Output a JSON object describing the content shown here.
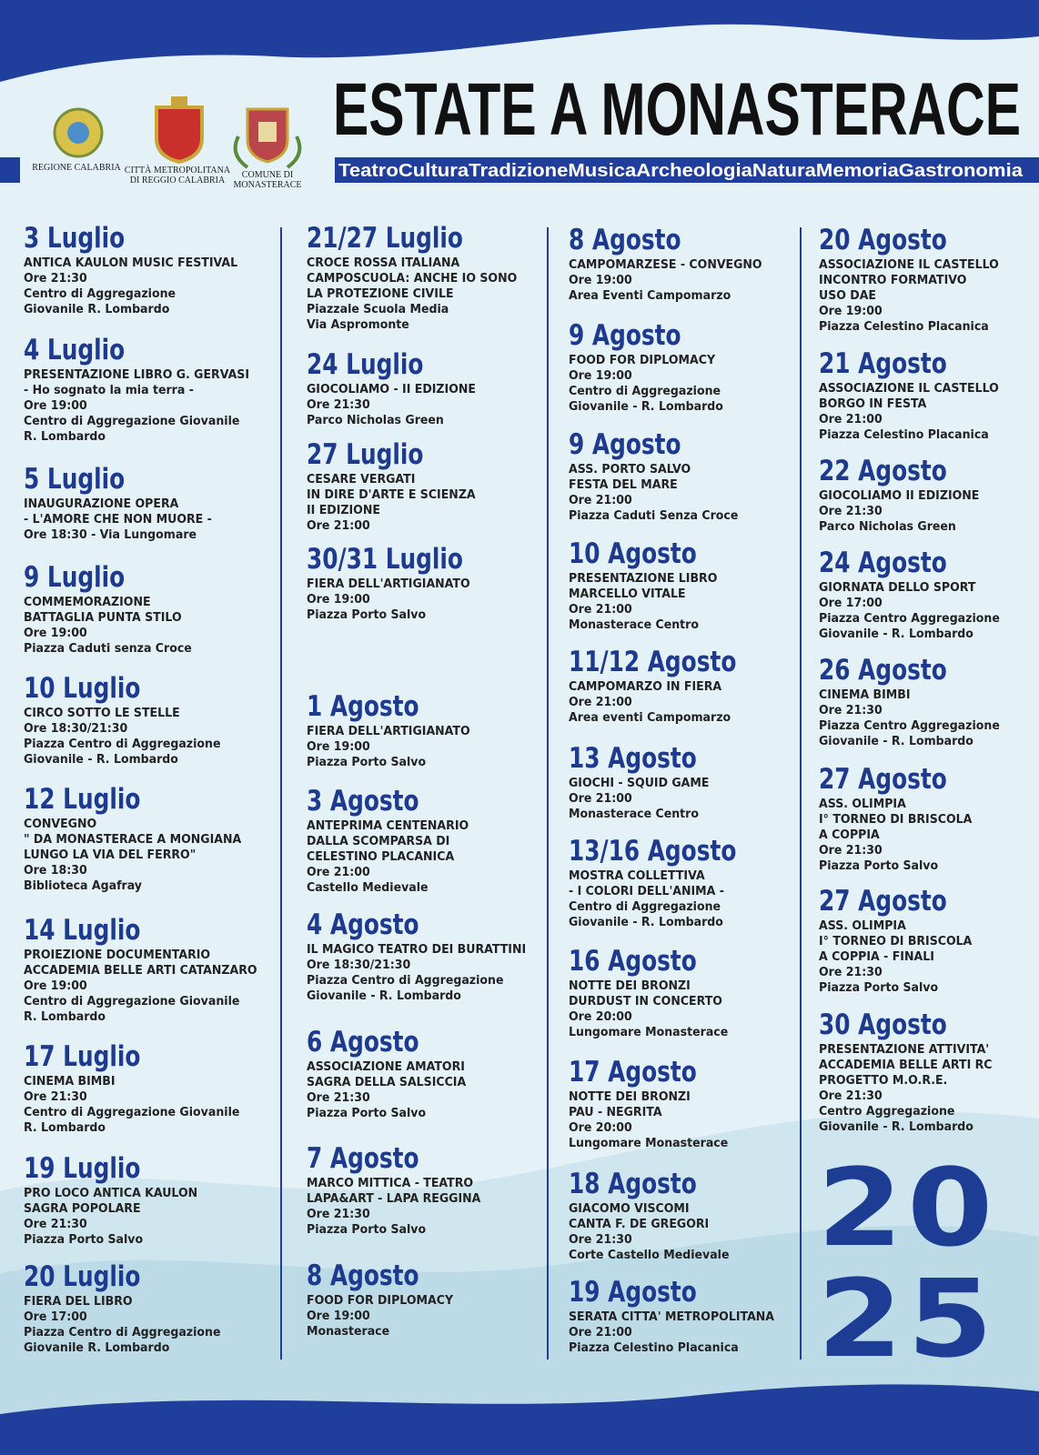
{
  "logos": {
    "regione": [
      "REGIONE CALABRIA"
    ],
    "citta": [
      "CITTÀ METROPOLITANA",
      "DI REGGIO CALABRIA"
    ],
    "comune": [
      "COMUNE DI",
      "MONASTERACE"
    ]
  },
  "title": "ESTATE A MONASTERACE",
  "subtitle": [
    "Teatro",
    "Cultura",
    "Tradizione",
    "Musica",
    "Archeologia",
    "Natura",
    "Memoria",
    "Gastronomia"
  ],
  "columns": [
    [
      {
        "date": "3 Luglio",
        "lines": [
          "ANTICA KAULON MUSIC FESTIVAL",
          "Ore 21:30",
          "Centro di Aggregazione",
          "Giovanile R. Lombardo"
        ]
      },
      {
        "date": "4 Luglio",
        "lines": [
          "PRESENTAZIONE LIBRO G. GERVASI",
          "- Ho sognato la mia terra -",
          "Ore 19:00",
          "Centro di Aggregazione Giovanile",
          "R. Lombardo"
        ]
      },
      {
        "date": "5 Luglio",
        "lines": [
          "INAUGURAZIONE OPERA",
          "- L'AMORE CHE NON MUORE -",
          "Ore 18:30 - Via Lungomare"
        ]
      },
      {
        "date": "9 Luglio",
        "lines": [
          "COMMEMORAZIONE",
          "BATTAGLIA PUNTA STILO",
          "Ore 19:00",
          "Piazza Caduti senza Croce"
        ]
      },
      {
        "date": "10 Luglio",
        "lines": [
          "CIRCO SOTTO LE STELLE",
          "Ore 18:30/21:30",
          "Piazza Centro di Aggregazione",
          "Giovanile - R. Lombardo"
        ]
      },
      {
        "date": "12 Luglio",
        "lines": [
          "CONVEGNO",
          "\" DA MONASTERACE A MONGIANA",
          "LUNGO LA VIA DEL FERRO\"",
          "Ore 18:30",
          "Biblioteca Agafray"
        ]
      },
      {
        "date": "14 Luglio",
        "lines": [
          "PROIEZIONE DOCUMENTARIO",
          "ACCADEMIA BELLE ARTI CATANZARO",
          "Ore 19:00",
          "Centro di Aggregazione Giovanile",
          "R. Lombardo"
        ]
      },
      {
        "date": "17 Luglio",
        "lines": [
          "CINEMA BIMBI",
          "Ore 21:30",
          "Centro di Aggregazione Giovanile",
          "R. Lombardo"
        ]
      },
      {
        "date": "19 Luglio",
        "lines": [
          "PRO LOCO ANTICA KAULON",
          "SAGRA POPOLARE",
          "Ore 21:30",
          "Piazza Porto Salvo"
        ]
      },
      {
        "date": "20 Luglio",
        "lines": [
          "FIERA DEL LIBRO",
          "Ore 17:00",
          "Piazza Centro di Aggregazione",
          "Giovanile R. Lombardo"
        ]
      }
    ],
    [
      {
        "date": "21/27 Luglio",
        "lines": [
          "CROCE ROSSA ITALIANA",
          "CAMPOSCUOLA: ANCHE IO SONO",
          "LA PROTEZIONE CIVILE",
          "Piazzale Scuola Media",
          "Via Aspromonte"
        ]
      },
      {
        "date": "24 Luglio",
        "lines": [
          "GIOCOLIAMO - II EDIZIONE",
          "Ore 21:30",
          "Parco Nicholas Green"
        ]
      },
      {
        "date": "27 Luglio",
        "lines": [
          "CESARE VERGATI",
          "IN DIRE D'ARTE E SCIENZA",
          "II EDIZIONE",
          "Ore 21:00"
        ]
      },
      {
        "date": "30/31 Luglio",
        "lines": [
          "FIERA DELL'ARTIGIANATO",
          "Ore 19:00",
          "Piazza Porto Salvo"
        ]
      },
      {
        "date": "1 Agosto",
        "lines": [
          "FIERA DELL'ARTIGIANATO",
          "Ore 19:00",
          "Piazza Porto Salvo"
        ]
      },
      {
        "date": "3 Agosto",
        "lines": [
          "ANTEPRIMA CENTENARIO",
          "DALLA SCOMPARSA DI",
          "CELESTINO PLACANICA",
          "Ore 21:00",
          "Castello Medievale"
        ]
      },
      {
        "date": "4 Agosto",
        "lines": [
          "IL MAGICO TEATRO DEI BURATTINI",
          "Ore 18:30/21:30",
          "Piazza Centro di Aggregazione",
          "Giovanile - R. Lombardo"
        ]
      },
      {
        "date": "6 Agosto",
        "lines": [
          "ASSOCIAZIONE AMATORI",
          "SAGRA DELLA SALSICCIA",
          "Ore 21:30",
          "Piazza Porto Salvo"
        ]
      },
      {
        "date": "7 Agosto",
        "lines": [
          "MARCO MITTICA - TEATRO",
          "LAPA&ART - LAPA REGGINA",
          "Ore 21:30",
          "Piazza Porto Salvo"
        ]
      },
      {
        "date": "8 Agosto",
        "lines": [
          "FOOD FOR DIPLOMACY",
          "Ore 19:00",
          "Monasterace"
        ]
      }
    ],
    [
      {
        "date": "8 Agosto",
        "lines": [
          "CAMPOMARZESE - CONVEGNO",
          "Ore 19:00",
          "Area Eventi Campomarzo"
        ]
      },
      {
        "date": "9 Agosto",
        "lines": [
          "FOOD FOR DIPLOMACY",
          "Ore 19:00",
          "Centro di Aggregazione",
          "Giovanile - R. Lombardo"
        ]
      },
      {
        "date": "9 Agosto",
        "lines": [
          "ASS. PORTO SALVO",
          "FESTA DEL MARE",
          "Ore 21:00",
          "Piazza Caduti Senza Croce"
        ]
      },
      {
        "date": "10 Agosto",
        "lines": [
          "PRESENTAZIONE LIBRO",
          "MARCELLO VITALE",
          "Ore 21:00",
          "Monasterace Centro"
        ]
      },
      {
        "date": "11/12 Agosto",
        "lines": [
          "CAMPOMARZO IN FIERA",
          "Ore 21:00",
          "Area eventi Campomarzo"
        ]
      },
      {
        "date": "13 Agosto",
        "lines": [
          "GIOCHI - SQUID GAME",
          "Ore 21:00",
          "Monasterace Centro"
        ]
      },
      {
        "date": "13/16 Agosto",
        "lines": [
          "MOSTRA COLLETTIVA",
          "- I COLORI DELL'ANIMA -",
          "Centro di Aggregazione",
          "Giovanile - R. Lombardo"
        ]
      },
      {
        "date": "16 Agosto",
        "lines": [
          "NOTTE DEI BRONZI",
          "DURDUST IN CONCERTO",
          "Ore 20:00",
          "Lungomare Monasterace"
        ]
      },
      {
        "date": "17 Agosto",
        "lines": [
          "NOTTE DEI BRONZI",
          "PAU - NEGRITA",
          "Ore 20:00",
          "Lungomare Monasterace"
        ]
      },
      {
        "date": "18 Agosto",
        "lines": [
          "GIACOMO VISCOMI",
          "CANTA F. DE GREGORI",
          "Ore 21:30",
          "Corte Castello Medievale"
        ]
      },
      {
        "date": "19 Agosto",
        "lines": [
          "SERATA CITTA' METROPOLITANA",
          "Ore 21:00",
          "Piazza Celestino Placanica"
        ]
      }
    ],
    [
      {
        "date": "20 Agosto",
        "lines": [
          "ASSOCIAZIONE IL CASTELLO",
          "INCONTRO FORMATIVO",
          "USO DAE",
          "Ore 19:00",
          "Piazza Celestino Placanica"
        ]
      },
      {
        "date": "21 Agosto",
        "lines": [
          "ASSOCIAZIONE IL CASTELLO",
          "BORGO IN FESTA",
          "Ore 21:00",
          "Piazza Celestino Placanica"
        ]
      },
      {
        "date": "22 Agosto",
        "lines": [
          "GIOCOLIAMO II EDIZIONE",
          "Ore 21:30",
          "Parco Nicholas Green"
        ]
      },
      {
        "date": "24 Agosto",
        "lines": [
          "GIORNATA DELLO SPORT",
          "Ore 17:00",
          "Piazza Centro Aggregazione",
          "Giovanile - R. Lombardo"
        ]
      },
      {
        "date": "26 Agosto",
        "lines": [
          "CINEMA BIMBI",
          "Ore 21:30",
          "Piazza Centro Aggregazione",
          "Giovanile - R. Lombardo"
        ]
      },
      {
        "date": "27 Agosto",
        "lines": [
          "ASS. OLIMPIA",
          "I° TORNEO DI BRISCOLA",
          "A COPPIA",
          "Ore 21:30",
          "Piazza Porto Salvo"
        ]
      },
      {
        "date": "27 Agosto",
        "lines": [
          "ASS. OLIMPIA",
          "I° TORNEO DI BRISCOLA",
          "A COPPIA - FINALI",
          "Ore 21:30",
          "Piazza Porto Salvo"
        ]
      },
      {
        "date": "30 Agosto",
        "lines": [
          "PRESENTAZIONE ATTIVITA'",
          "ACCADEMIA BELLE ARTI RC",
          "PROGETTO M.O.R.E.",
          "Ore 21:30",
          "Centro Aggregazione",
          "Giovanile - R. Lombardo"
        ]
      }
    ]
  ],
  "year": [
    "20",
    "25"
  ]
}
